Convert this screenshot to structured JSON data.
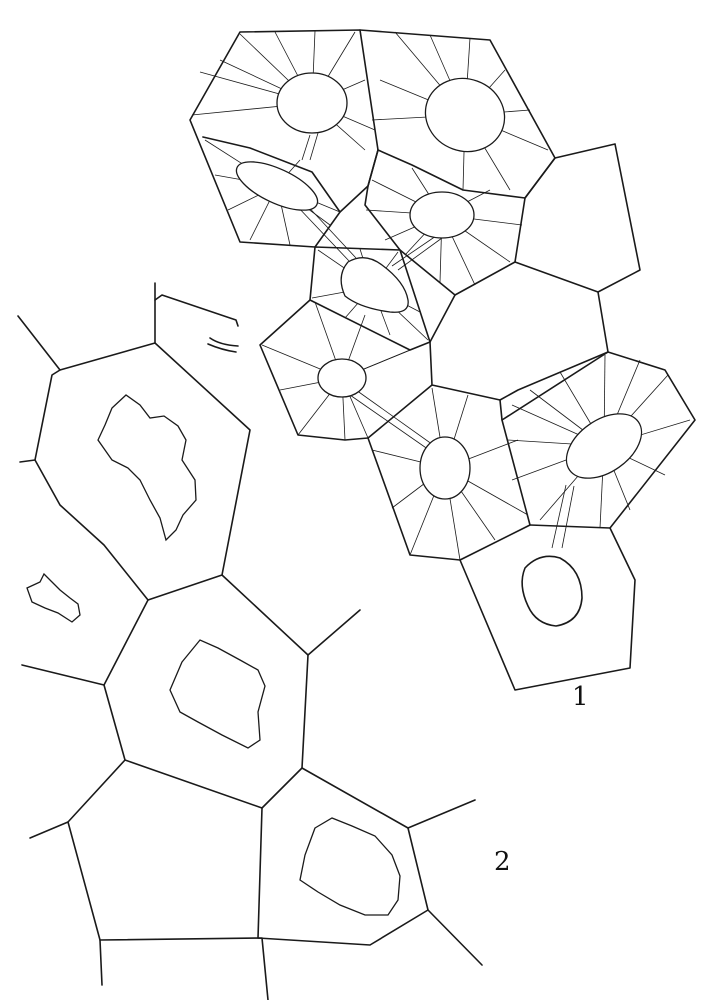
{
  "figure_labels": {
    "fig1": "1",
    "fig2": "2"
  },
  "colors": {
    "ink": "#1a1a1a",
    "paper": "#ffffff"
  }
}
